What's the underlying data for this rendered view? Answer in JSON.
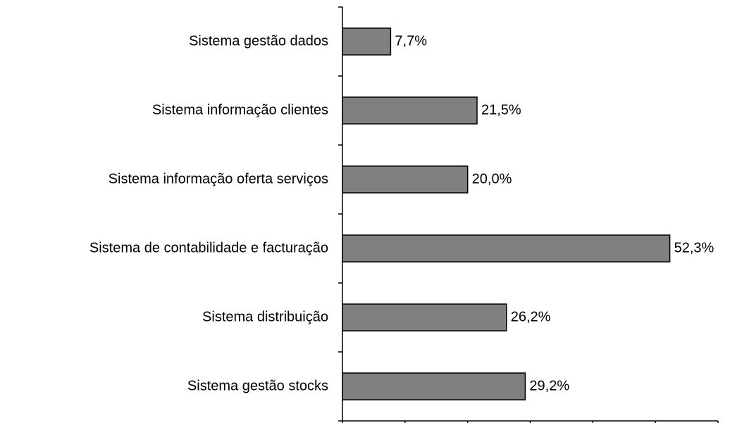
{
  "chart_data": {
    "type": "bar",
    "orientation": "horizontal",
    "categories": [
      "Sistema gestão dados",
      "Sistema informação clientes",
      "Sistema informação oferta serviços",
      "Sistema de contabilidade e facturação",
      "Sistema distribuição",
      "Sistema gestão stocks"
    ],
    "values": [
      7.7,
      21.5,
      20.0,
      52.3,
      26.2,
      29.2
    ],
    "value_labels": [
      "7,7%",
      "21,5%",
      "20,0%",
      "52,3%",
      "26,2%",
      "29,2%"
    ],
    "color": "#808080",
    "xlim": [
      0,
      60
    ],
    "xticks": [
      0,
      10,
      20,
      30,
      40,
      50,
      60
    ]
  }
}
